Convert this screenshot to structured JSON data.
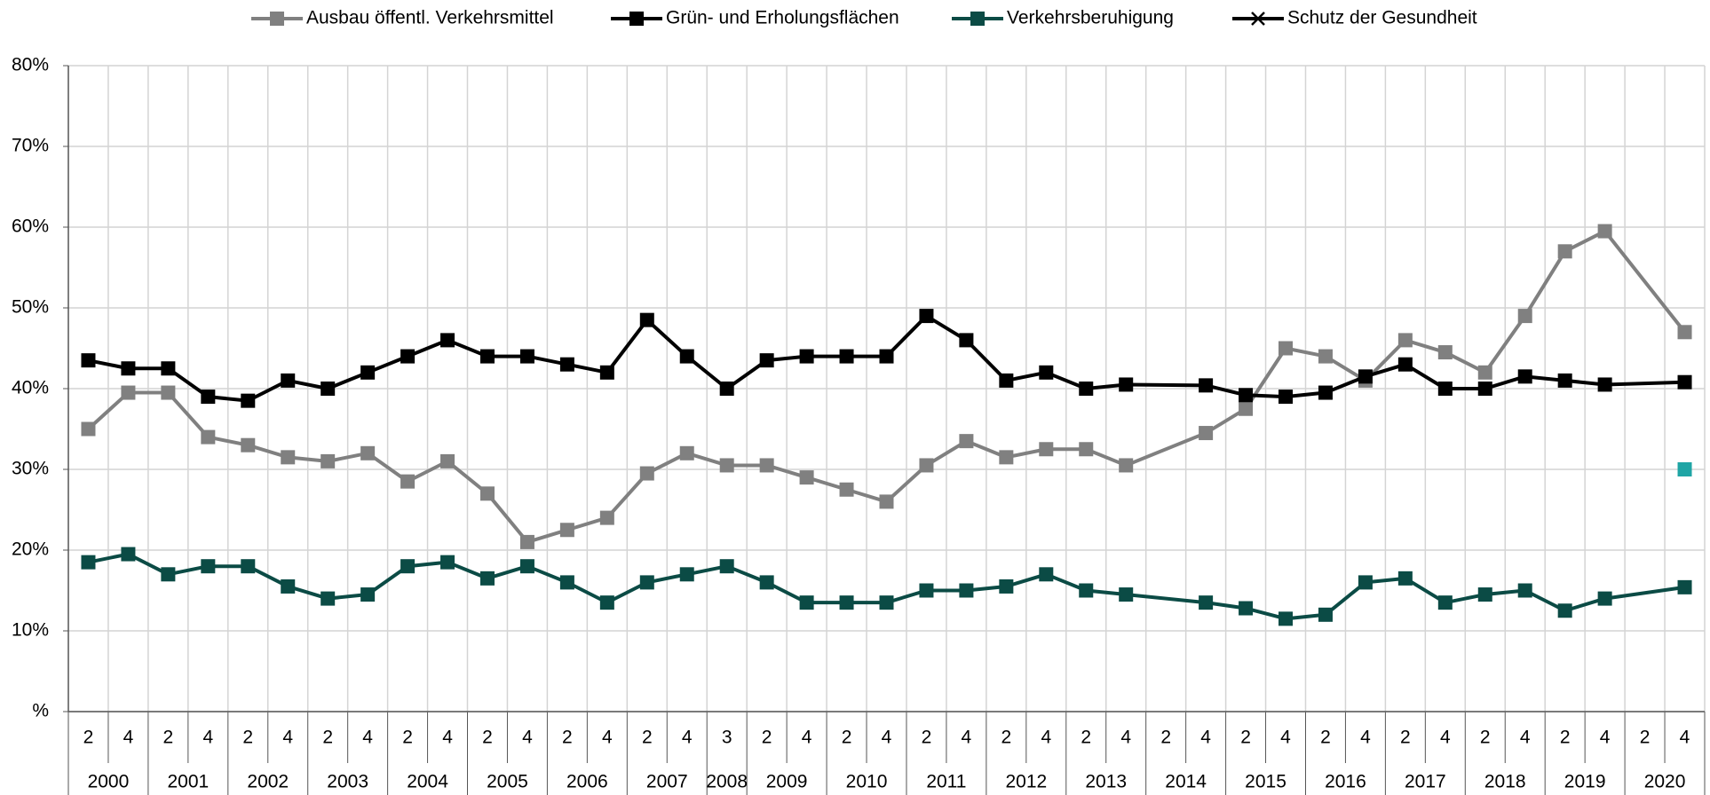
{
  "chart_data": {
    "type": "line",
    "categories": [
      "2",
      "4",
      "2",
      "4",
      "2",
      "4",
      "2",
      "4",
      "2",
      "4",
      "2",
      "4",
      "2",
      "4",
      "2",
      "4",
      "3",
      "2",
      "4",
      "2",
      "4",
      "2",
      "4",
      "2",
      "4",
      "2",
      "4",
      "2",
      "4",
      "2",
      "4",
      "2",
      "4",
      "2",
      "4",
      "2",
      "4",
      "2",
      "4",
      "2",
      "4"
    ],
    "category_years": [
      "2000",
      "2000",
      "2001",
      "2001",
      "2002",
      "2002",
      "2003",
      "2003",
      "2004",
      "2004",
      "2005",
      "2005",
      "2006",
      "2006",
      "2007",
      "2007",
      "2008",
      "2009",
      "2009",
      "2010",
      "2010",
      "2011",
      "2011",
      "2012",
      "2012",
      "2013",
      "2013",
      "2014",
      "2014",
      "2015",
      "2015",
      "2016",
      "2016",
      "2017",
      "2017",
      "2018",
      "2018",
      "2019",
      "2019",
      "2020",
      "2020"
    ],
    "series": [
      {
        "name": "Ausbau öffentl. Verkehrsmittel",
        "color": "#808080",
        "marker": "square",
        "values": [
          35,
          39.5,
          39.5,
          34,
          33,
          31.5,
          31,
          32,
          28.5,
          31,
          27,
          21,
          22.5,
          24,
          29.5,
          32,
          30.5,
          30.5,
          29,
          27.5,
          26,
          30.5,
          33.5,
          31.5,
          32.5,
          32.5,
          30.5,
          null,
          34.5,
          37.5,
          45,
          44,
          41,
          46,
          44.5,
          42,
          49,
          57,
          59.5,
          null,
          47
        ]
      },
      {
        "name": "Grün- und Erholungsflächen",
        "color": "#000000",
        "marker": "square",
        "values": [
          43.5,
          42.5,
          42.5,
          39,
          38.5,
          41,
          40,
          42,
          44,
          46,
          44,
          44,
          43,
          42,
          48.5,
          44,
          40,
          43.5,
          44,
          44,
          44,
          49,
          46,
          41,
          42,
          40,
          40.5,
          null,
          40.4,
          39.2,
          39,
          39.5,
          41.5,
          43,
          40,
          40,
          41.5,
          41,
          40.5,
          null,
          40.8
        ]
      },
      {
        "name": "Verkehrsberuhigung",
        "color": "#0b4b45",
        "marker": "square",
        "values": [
          18.5,
          19.5,
          17,
          18,
          18,
          15.5,
          14,
          14.5,
          18,
          18.5,
          16.5,
          18,
          16,
          13.5,
          16,
          17,
          18,
          16,
          13.5,
          13.5,
          13.5,
          15,
          15,
          15.5,
          17,
          15,
          14.5,
          null,
          13.5,
          12.8,
          11.5,
          12,
          16,
          16.5,
          13.5,
          14.5,
          15,
          12.5,
          14,
          null,
          15.4
        ]
      },
      {
        "name": "Schutz der Gesundheit",
        "color": "#000000",
        "marker": "x",
        "marker_color": "#1fa5a5",
        "values": [
          null,
          null,
          null,
          null,
          null,
          null,
          null,
          null,
          null,
          null,
          null,
          null,
          null,
          null,
          null,
          null,
          null,
          null,
          null,
          null,
          null,
          null,
          null,
          null,
          null,
          null,
          null,
          null,
          null,
          null,
          null,
          null,
          null,
          null,
          null,
          null,
          null,
          null,
          null,
          null,
          30
        ]
      }
    ],
    "span_gaps": true,
    "ylim": [
      0,
      80
    ],
    "yticks": [
      {
        "value": 0,
        "label": "%"
      },
      {
        "value": 10,
        "label": "10%"
      },
      {
        "value": 20,
        "label": "20%"
      },
      {
        "value": 30,
        "label": "30%"
      },
      {
        "value": 40,
        "label": "40%"
      },
      {
        "value": 50,
        "label": "50%"
      },
      {
        "value": 60,
        "label": "60%"
      },
      {
        "value": 70,
        "label": "70%"
      },
      {
        "value": 80,
        "label": "80%"
      }
    ],
    "grid": true,
    "legend": "top"
  }
}
